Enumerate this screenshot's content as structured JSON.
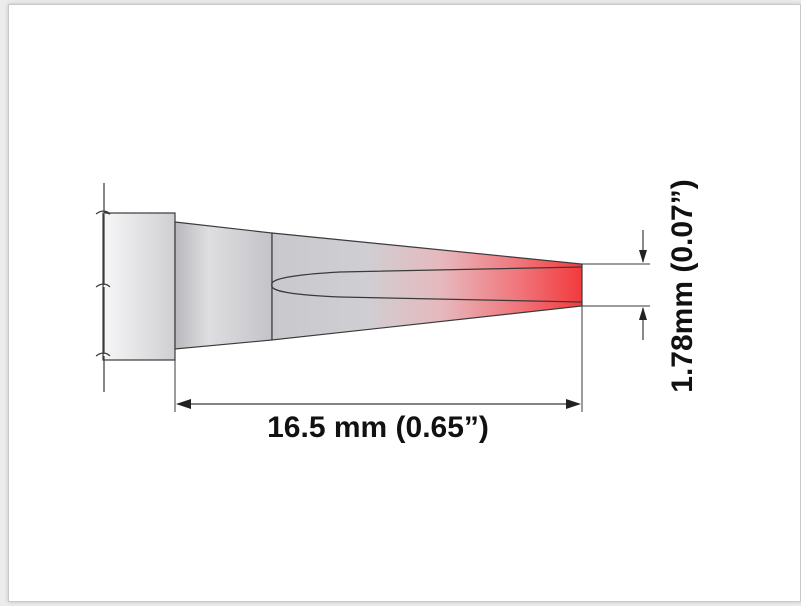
{
  "diagram": {
    "length_label": "16.5 mm (0.65”)",
    "width_label": "1.78mm (0.07”)"
  },
  "colors": {
    "tip_accent": "#f23a3e",
    "body_gray": "#c8c8cc",
    "outline": "#3a3a3a",
    "frame_border": "#c9c9c9"
  }
}
